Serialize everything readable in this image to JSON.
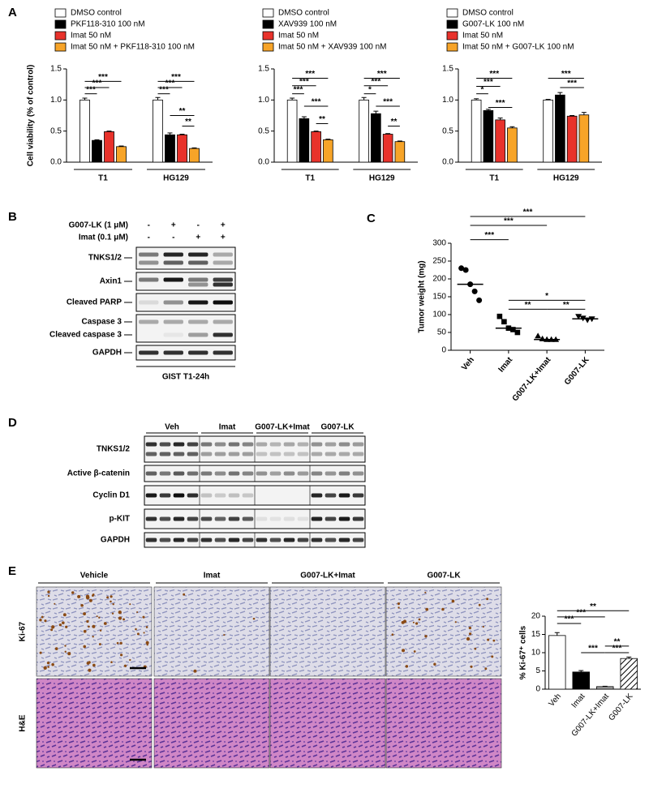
{
  "panel_labels": [
    "A",
    "B",
    "C",
    "D",
    "E"
  ],
  "chart_data": [
    {
      "type": "bar",
      "y_label": "Cell viability (% of control)",
      "categories": [
        "T1",
        "HG129"
      ],
      "series": [
        {
          "name": "DMSO control",
          "color": "#ffffff",
          "values": [
            1.0,
            1.0
          ],
          "errors": [
            0.03,
            0.04
          ]
        },
        {
          "name": "PKF118-310 100 nM",
          "color": "#000000",
          "values": [
            0.35,
            0.44
          ],
          "errors": [
            0.01,
            0.03
          ]
        },
        {
          "name": "Imat 50 nM",
          "color": "#e8322b",
          "values": [
            0.49,
            0.44
          ],
          "errors": [
            0.01,
            0.01
          ]
        },
        {
          "name": "Imat 50 nM + PKF118-310 100 nM",
          "color": "#f7a428",
          "values": [
            0.25,
            0.22
          ],
          "errors": [
            0.01,
            0.01
          ]
        }
      ],
      "ylim": [
        0,
        1.5
      ],
      "yticks": [
        {
          "value": 0,
          "label": "0.0"
        },
        0.5,
        {
          "value": 1,
          "label": "1.0"
        },
        1.5
      ],
      "annotations": [
        "***",
        "***",
        "***",
        "***",
        "***",
        "***",
        "**",
        "**"
      ]
    },
    {
      "type": "bar",
      "categories": [
        "T1",
        "HG129"
      ],
      "series": [
        {
          "name": "DMSO control",
          "color": "#ffffff",
          "values": [
            1.0,
            1.0
          ],
          "errors": [
            0.03,
            0.04
          ]
        },
        {
          "name": "XAV939 100 nM",
          "color": "#000000",
          "values": [
            0.7,
            0.78
          ],
          "errors": [
            0.03,
            0.04
          ]
        },
        {
          "name": "Imat 50 nM",
          "color": "#e8322b",
          "values": [
            0.49,
            0.45
          ],
          "errors": [
            0.01,
            0.01
          ]
        },
        {
          "name": "Imat 50 nM + XAV939 100 nM",
          "color": "#f7a428",
          "values": [
            0.36,
            0.33
          ],
          "errors": [
            0.01,
            0.01
          ]
        }
      ],
      "ylim": [
        0,
        1.5
      ],
      "yticks": [
        {
          "value": 0,
          "label": "0.0"
        },
        0.5,
        {
          "value": 1,
          "label": "1.0"
        },
        1.5
      ],
      "annotations": [
        "***",
        "***",
        "***",
        "***",
        "**",
        "***",
        "***",
        "*",
        "***",
        "**"
      ]
    },
    {
      "type": "bar",
      "categories": [
        "T1",
        "HG129"
      ],
      "series": [
        {
          "name": "DMSO control",
          "color": "#ffffff",
          "values": [
            1.0,
            1.0
          ],
          "errors": [
            0.02,
            0.01
          ]
        },
        {
          "name": "G007-LK 100 nM",
          "color": "#000000",
          "values": [
            0.83,
            1.08
          ],
          "errors": [
            0.02,
            0.04
          ]
        },
        {
          "name": "Imat 50 nM",
          "color": "#e8322b",
          "values": [
            0.68,
            0.74
          ],
          "errors": [
            0.03,
            0.01
          ]
        },
        {
          "name": "Imat 50 nM + G007-LK 100 nM",
          "color": "#f7a428",
          "values": [
            0.55,
            0.76
          ],
          "errors": [
            0.02,
            0.04
          ]
        }
      ],
      "ylim": [
        0,
        1.5
      ],
      "yticks": [
        {
          "value": 0,
          "label": "0.0"
        },
        0.5,
        {
          "value": 1,
          "label": "1.0"
        },
        1.5
      ],
      "annotations": [
        "***",
        "***",
        "*",
        "***",
        "***",
        "***"
      ]
    },
    {
      "type": "dot",
      "y_label": "Tumor weight (mg)",
      "categories": [
        "Veh",
        "Imat",
        "G007-LK+Imat",
        "G007-LK"
      ],
      "values": [
        [
          230,
          225,
          185,
          165,
          140
        ],
        [
          95,
          80,
          62,
          58,
          50
        ],
        [
          40,
          32,
          30,
          30,
          30
        ],
        [
          95,
          90,
          85,
          88
        ]
      ],
      "medians": [
        185,
        62,
        30,
        88
      ],
      "markers": [
        "circle",
        "square",
        "triangle",
        "triangle-down"
      ],
      "color": "#000000",
      "ylim": [
        0,
        300
      ],
      "yticks": [
        0,
        50,
        100,
        150,
        200,
        250,
        300
      ],
      "annotations": [
        "***",
        "***",
        "***",
        "*",
        "**",
        "**"
      ]
    },
    {
      "type": "bar",
      "y_label": "% Ki-67⁺ cells",
      "categories": [
        "Veh",
        "Imat",
        "G007-LK+Imat",
        "G007-LK"
      ],
      "values": [
        14.7,
        4.7,
        0.7,
        8.4
      ],
      "errors": [
        0.8,
        0.4,
        0.1,
        0.4
      ],
      "colors": [
        "#ffffff",
        "#000000",
        "#a0a0a0",
        "#ffffff"
      ],
      "hatch": [
        false,
        false,
        false,
        true
      ],
      "ylim": [
        0,
        20
      ],
      "yticks": [
        0,
        5,
        10,
        15,
        20
      ],
      "annotations": [
        "**",
        "***",
        "***",
        "**",
        "***",
        "***"
      ]
    }
  ],
  "blot_b": {
    "conditions": [
      {
        "label": "G007-LK (1 μM)",
        "signs": [
          "-",
          "+",
          "-",
          "+"
        ]
      },
      {
        "label": "Imat (0.1 μM)",
        "signs": [
          "-",
          "-",
          "+",
          "+"
        ]
      }
    ],
    "rows": [
      "TNKS1/2",
      "Axin1",
      "Cleaved PARP",
      "Caspase 3",
      "Cleaved caspase 3",
      "GAPDH"
    ],
    "caption": "GIST T1-24h"
  },
  "blot_d": {
    "groups": [
      "Veh",
      "Imat",
      "G007-LK+Imat",
      "G007-LK"
    ],
    "rows": [
      "TNKS1/2",
      "Active β-catenin",
      "Cyclin D1",
      "p-KIT",
      "GAPDH"
    ]
  },
  "histology": {
    "columns": [
      "Vehicle",
      "Imat",
      "G007-LK+Imat",
      "G007-LK"
    ],
    "rows": [
      "Ki-67",
      "H&E"
    ]
  }
}
